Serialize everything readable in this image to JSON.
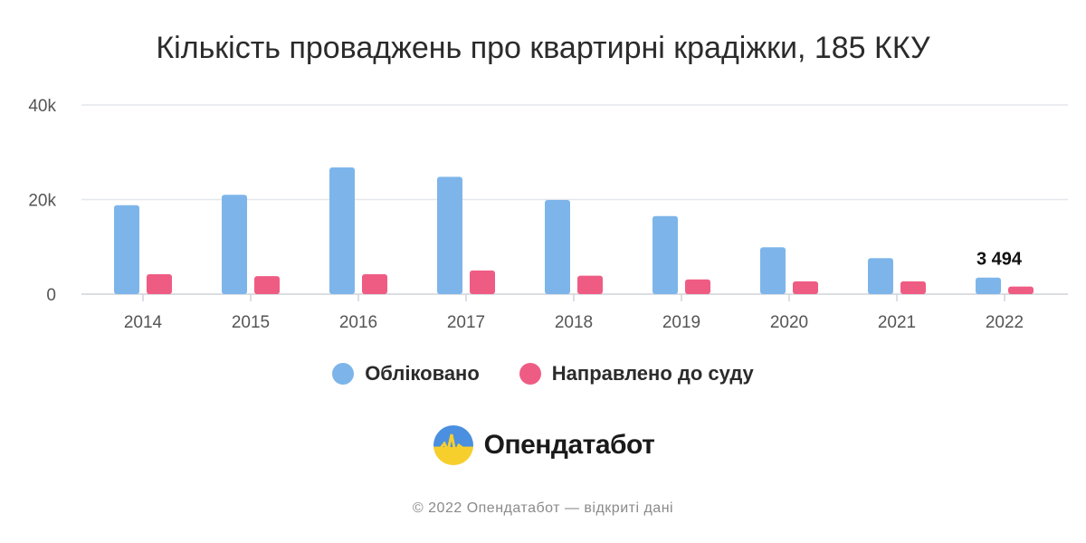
{
  "chart_data": {
    "type": "bar",
    "title": "Кількість проваджень про квартирні крадіжки, 185 ККУ",
    "categories": [
      "2014",
      "2015",
      "2016",
      "2017",
      "2018",
      "2019",
      "2020",
      "2021",
      "2022"
    ],
    "series": [
      {
        "name": "Обліковано",
        "color": "#7db5ea",
        "values": [
          18800,
          21000,
          26800,
          24800,
          19900,
          16500,
          9900,
          7600,
          3494
        ]
      },
      {
        "name": "Направлено до суду",
        "color": "#ef5c83",
        "values": [
          4200,
          3800,
          4200,
          5000,
          3900,
          3100,
          2700,
          2700,
          1600
        ]
      }
    ],
    "y_ticks": [
      "0",
      "20k",
      "40k"
    ],
    "ylim": [
      0,
      40000
    ],
    "grid": true,
    "legend_position": "bottom",
    "annotations": [
      {
        "category": "2022",
        "series": "Обліковано",
        "text": "3 494"
      }
    ]
  },
  "brand": {
    "name": "Опендатабот",
    "icon": "opendatabot-logo-icon"
  },
  "footer": "© 2022 Опендатабот — відкриті дані"
}
